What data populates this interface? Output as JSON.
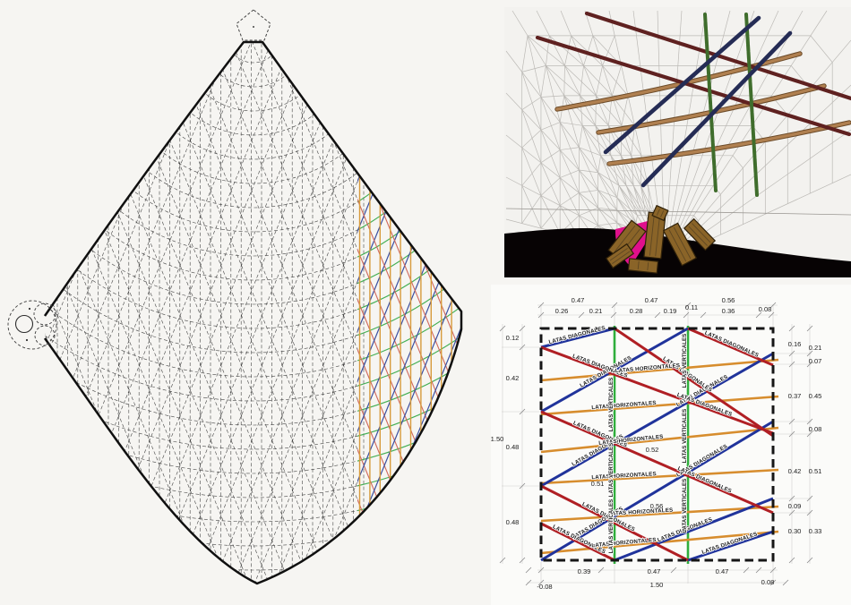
{
  "page": {
    "background": "#f6f5f2"
  },
  "panels": {
    "pattern_drawing": {
      "description": "flattened gridshell cutting pattern with pentagon cap and circle joint detail",
      "colors": {
        "outline": "#101010",
        "lattice": "#3a3a3a",
        "orange_vertical": "#d79b3c",
        "green_horizontal": "#43af53",
        "blue_diagonal": "#3b4fa0",
        "red_diagonal": "#d0685c"
      }
    },
    "render_3d": {
      "description": "3d perspective render of gridshell mesh with colored latas over wooden blocks",
      "colors": {
        "mesh": "#9a9792",
        "tan_bar": "#b08050",
        "maroon_bar": "#5f2120",
        "navy_bar": "#252c55",
        "green_bar": "#3f6d2c",
        "magenta": "#e0108c",
        "wood": "#8a6428",
        "ground": "#070304"
      }
    },
    "layout_diagram": {
      "labels": {
        "diagonales": "LATAS DIAGONALES",
        "horizontales": "LATAS HORIZONTALES",
        "verticales": "LATAS VERTICALES"
      },
      "dimensions": {
        "top_row1": [
          "0.47",
          "0.47",
          "0.56"
        ],
        "top_row2": [
          "0.26",
          "0.21",
          "0.28",
          "0.19",
          "0.11",
          "0.36",
          "0.08"
        ],
        "left_inner": [
          "0.12",
          "0.42",
          "0.48",
          "0.48"
        ],
        "left_outer": [
          "1.50"
        ],
        "right_inner": [
          "0.16",
          "0.37",
          "0.42",
          "0.09",
          "0.30"
        ],
        "right_outer": [
          "0.21",
          "0.07",
          "0.45",
          "0.08",
          "0.51",
          "0.33"
        ],
        "bottom_row1": [
          "0.39",
          "0.47",
          "0.47"
        ],
        "bottom_row2": [
          "-0.08",
          "1.50",
          "0.08"
        ],
        "interior": [
          "0.52",
          "0.51",
          "0.56"
        ]
      },
      "colors": {
        "diagonal_blue": "#20339b",
        "diagonal_red": "#b01f24",
        "horizontal_orange": "#d78d2e",
        "vertical_green": "#2fae3c",
        "border": "#161616",
        "dim_text": "#222222"
      }
    }
  }
}
